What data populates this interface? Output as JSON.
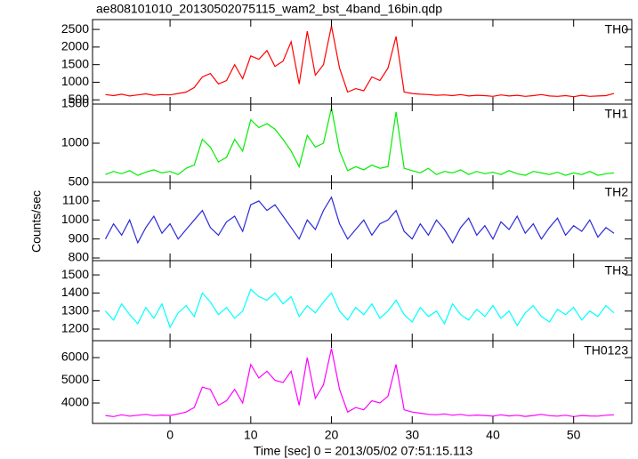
{
  "title": "ae808101010_20130502075115_wam2_bst_4band_16bin.qdp",
  "xlabel": "Time [sec] 0 = 2013/05/02 07:51:15.113",
  "ylabel": "Counts/sec",
  "chart_data": [
    {
      "type": "line",
      "label": "TH0",
      "color": "#ff0000",
      "x": [
        -8,
        -7,
        -6,
        -5,
        -4,
        -3,
        -2,
        -1,
        0,
        1,
        2,
        3,
        4,
        5,
        6,
        7,
        8,
        9,
        10,
        11,
        12,
        13,
        14,
        15,
        16,
        17,
        18,
        19,
        20,
        21,
        22,
        23,
        24,
        25,
        26,
        27,
        28,
        29,
        30,
        31,
        32,
        33,
        34,
        35,
        36,
        37,
        38,
        39,
        40,
        41,
        42,
        43,
        44,
        45,
        46,
        47,
        48,
        49,
        50,
        51,
        52,
        53,
        54,
        55
      ],
      "values": [
        650,
        620,
        660,
        610,
        640,
        670,
        630,
        650,
        640,
        680,
        720,
        850,
        1150,
        1250,
        950,
        1050,
        1500,
        1100,
        1750,
        1650,
        1900,
        1450,
        1600,
        2150,
        950,
        2450,
        1200,
        1500,
        2600,
        1400,
        720,
        820,
        760,
        1150,
        1050,
        1400,
        2300,
        720,
        680,
        660,
        650,
        630,
        640,
        620,
        650,
        610,
        630,
        620,
        600,
        640,
        610,
        630,
        600,
        620,
        650,
        610,
        600,
        620,
        590,
        630,
        600,
        610,
        620,
        680
      ],
      "xlim": [
        -9.6,
        57.2
      ],
      "xticks": [
        0,
        10,
        20,
        30,
        40,
        50
      ],
      "ylim": [
        380,
        2780
      ],
      "yticks": [
        500,
        1000,
        1500,
        2000,
        2500
      ]
    },
    {
      "type": "line",
      "label": "TH1",
      "color": "#00ee00",
      "x": [
        -8,
        -7,
        -6,
        -5,
        -4,
        -3,
        -2,
        -1,
        0,
        1,
        2,
        3,
        4,
        5,
        6,
        7,
        8,
        9,
        10,
        11,
        12,
        13,
        14,
        15,
        16,
        17,
        18,
        19,
        20,
        21,
        22,
        23,
        24,
        25,
        26,
        27,
        28,
        29,
        30,
        31,
        32,
        33,
        34,
        35,
        36,
        37,
        38,
        39,
        40,
        41,
        42,
        43,
        44,
        45,
        46,
        47,
        48,
        49,
        50,
        51,
        52,
        53,
        54,
        55
      ],
      "values": [
        600,
        640,
        610,
        650,
        590,
        630,
        660,
        620,
        640,
        600,
        680,
        720,
        1050,
        950,
        760,
        820,
        1050,
        900,
        1300,
        1200,
        1250,
        1180,
        1050,
        900,
        700,
        1100,
        950,
        1000,
        1450,
        900,
        650,
        700,
        660,
        720,
        680,
        700,
        1400,
        680,
        650,
        620,
        680,
        600,
        640,
        620,
        660,
        600,
        640,
        610,
        630,
        600,
        650,
        610,
        590,
        640,
        620,
        600,
        630,
        590,
        620,
        600,
        640,
        590,
        610,
        620
      ],
      "xlim": [
        -9.6,
        57.2
      ],
      "xticks": [
        0,
        10,
        20,
        30,
        40,
        50
      ],
      "ylim": [
        500,
        1500
      ],
      "yticks": [
        500,
        1000,
        1500
      ]
    },
    {
      "type": "line",
      "label": "TH2",
      "color": "#2a2ad8",
      "x": [
        -8,
        -7,
        -6,
        -5,
        -4,
        -3,
        -2,
        -1,
        0,
        1,
        2,
        3,
        4,
        5,
        6,
        7,
        8,
        9,
        10,
        11,
        12,
        13,
        14,
        15,
        16,
        17,
        18,
        19,
        20,
        21,
        22,
        23,
        24,
        25,
        26,
        27,
        28,
        29,
        30,
        31,
        32,
        33,
        34,
        35,
        36,
        37,
        38,
        39,
        40,
        41,
        42,
        43,
        44,
        45,
        46,
        47,
        48,
        49,
        50,
        51,
        52,
        53,
        54,
        55
      ],
      "values": [
        900,
        980,
        920,
        1000,
        880,
        960,
        1020,
        930,
        980,
        900,
        950,
        1000,
        1050,
        960,
        920,
        990,
        1020,
        940,
        1080,
        1100,
        1050,
        1080,
        1020,
        960,
        900,
        1000,
        950,
        1050,
        1120,
        980,
        900,
        950,
        1000,
        920,
        980,
        1000,
        1050,
        940,
        900,
        980,
        920,
        1000,
        950,
        880,
        960,
        1010,
        920,
        970,
        900,
        990,
        950,
        1020,
        930,
        980,
        900,
        960,
        1010,
        920,
        970,
        940,
        1000,
        910,
        960,
        930
      ],
      "xlim": [
        -9.6,
        57.2
      ],
      "xticks": [
        0,
        10,
        20,
        30,
        40,
        50
      ],
      "ylim": [
        786,
        1198
      ],
      "yticks": [
        800,
        900,
        1000,
        1100
      ]
    },
    {
      "type": "line",
      "label": "TH3",
      "color": "#00ffff",
      "x": [
        -8,
        -7,
        -6,
        -5,
        -4,
        -3,
        -2,
        -1,
        0,
        1,
        2,
        3,
        4,
        5,
        6,
        7,
        8,
        9,
        10,
        11,
        12,
        13,
        14,
        15,
        16,
        17,
        18,
        19,
        20,
        21,
        22,
        23,
        24,
        25,
        26,
        27,
        28,
        29,
        30,
        31,
        32,
        33,
        34,
        35,
        36,
        37,
        38,
        39,
        40,
        41,
        42,
        43,
        44,
        45,
        46,
        47,
        48,
        49,
        50,
        51,
        52,
        53,
        54,
        55
      ],
      "values": [
        1300,
        1250,
        1340,
        1280,
        1230,
        1320,
        1260,
        1340,
        1210,
        1290,
        1330,
        1270,
        1400,
        1350,
        1280,
        1320,
        1260,
        1300,
        1420,
        1380,
        1360,
        1400,
        1340,
        1380,
        1270,
        1330,
        1290,
        1350,
        1400,
        1300,
        1250,
        1320,
        1280,
        1340,
        1260,
        1300,
        1360,
        1280,
        1240,
        1320,
        1270,
        1300,
        1230,
        1340,
        1280,
        1250,
        1310,
        1270,
        1330,
        1260,
        1300,
        1220,
        1290,
        1330,
        1270,
        1240,
        1310,
        1280,
        1320,
        1250,
        1300,
        1270,
        1330,
        1290
      ],
      "xlim": [
        -9.6,
        57.2
      ],
      "xticks": [
        0,
        10,
        20,
        30,
        40,
        50
      ],
      "ylim": [
        1136,
        1579
      ],
      "yticks": [
        1200,
        1300,
        1400,
        1500
      ]
    },
    {
      "type": "line",
      "label": "TH0123",
      "color": "#ff00ff",
      "x": [
        -8,
        -7,
        -6,
        -5,
        -4,
        -3,
        -2,
        -1,
        0,
        1,
        2,
        3,
        4,
        5,
        6,
        7,
        8,
        9,
        10,
        11,
        12,
        13,
        14,
        15,
        16,
        17,
        18,
        19,
        20,
        21,
        22,
        23,
        24,
        25,
        26,
        27,
        28,
        29,
        30,
        31,
        32,
        33,
        34,
        35,
        36,
        37,
        38,
        39,
        40,
        41,
        42,
        43,
        44,
        45,
        46,
        47,
        48,
        49,
        50,
        51,
        52,
        53,
        54,
        55
      ],
      "values": [
        3450,
        3400,
        3480,
        3420,
        3460,
        3500,
        3440,
        3470,
        3450,
        3520,
        3600,
        3800,
        4700,
        4600,
        3900,
        4100,
        4600,
        4000,
        5700,
        5100,
        5400,
        5000,
        4900,
        5400,
        3900,
        6000,
        4200,
        4800,
        6400,
        4600,
        3600,
        3800,
        3700,
        4100,
        4000,
        4300,
        5700,
        3700,
        3600,
        3550,
        3500,
        3480,
        3520,
        3460,
        3500,
        3440,
        3470,
        3450,
        3420,
        3480,
        3430,
        3460,
        3410,
        3450,
        3500,
        3440,
        3420,
        3460,
        3400,
        3450,
        3430,
        3420,
        3460,
        3480
      ],
      "xlim": [
        -9.6,
        57.2
      ],
      "xticks": [
        0,
        10,
        20,
        30,
        40,
        50
      ],
      "ylim": [
        3100,
        6745
      ],
      "yticks": [
        4000,
        5000,
        6000
      ]
    }
  ]
}
